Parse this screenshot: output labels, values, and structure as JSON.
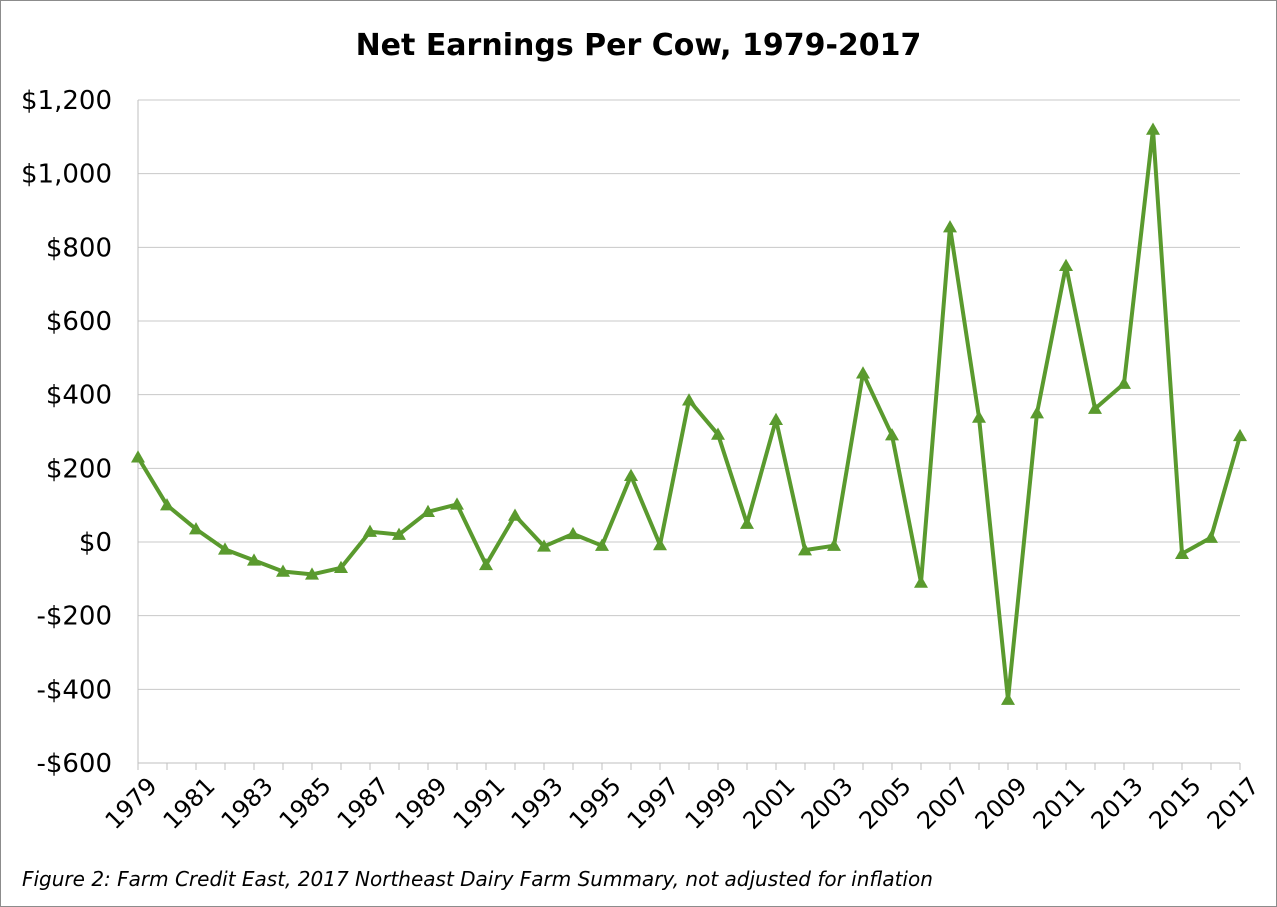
{
  "chart_data": {
    "type": "line",
    "title": "Net Earnings Per Cow, 1979-2017",
    "xlabel": "",
    "ylabel": "",
    "ylim": [
      -600,
      1200
    ],
    "ytick_values": [
      -600,
      -400,
      -200,
      0,
      200,
      400,
      600,
      800,
      1000,
      1200
    ],
    "ytick_labels": [
      "-$600",
      "-$400",
      "-$200",
      "$0",
      "$200",
      "$400",
      "$600",
      "$800",
      "$1,000",
      "$1,200"
    ],
    "x_labels": [
      "1979",
      "1981",
      "1983",
      "1985",
      "1987",
      "1989",
      "1991",
      "1993",
      "1995",
      "1997",
      "1999",
      "2001",
      "2003",
      "2005",
      "2007",
      "2009",
      "2011",
      "2013",
      "2015",
      "2017"
    ],
    "grid": true,
    "legend": "none",
    "line_color": "#5a9a2e",
    "marker": "triangle",
    "series": [
      {
        "x": [
          1979,
          1980,
          1981,
          1982,
          1983,
          1984,
          1985,
          1986,
          1987,
          1988,
          1989,
          1990,
          1991,
          1992,
          1993,
          1994,
          1995,
          1996,
          1997,
          1998,
          1999,
          2000,
          2001,
          2002,
          2003,
          2004,
          2005,
          2006,
          2007,
          2008,
          2009,
          2010,
          2011,
          2012,
          2013,
          2014,
          2015,
          2016,
          2017
        ],
        "values": [
          230,
          100,
          35,
          -20,
          -50,
          -80,
          -88,
          -70,
          28,
          20,
          82,
          102,
          -62,
          72,
          -12,
          22,
          -10,
          180,
          -8,
          385,
          292,
          50,
          332,
          -22,
          -10,
          458,
          290,
          -110,
          855,
          338,
          -428,
          350,
          750,
          362,
          430,
          1120,
          -32,
          12,
          288
        ]
      }
    ]
  },
  "caption": "Figure 2: Farm Credit East, 2017 Northeast Dairy Farm Summary, not adjusted for inflation"
}
